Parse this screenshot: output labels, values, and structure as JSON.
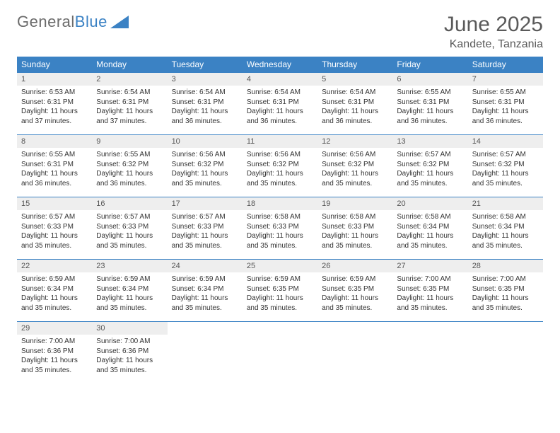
{
  "logo": {
    "text1": "General",
    "text2": "Blue"
  },
  "title": "June 2025",
  "location": "Kandete, Tanzania",
  "colors": {
    "header_bg": "#3b82c4",
    "header_text": "#ffffff",
    "daynum_bg": "#eeeeee",
    "text": "#333333",
    "logo_gray": "#6b6b6b",
    "logo_blue": "#3b82c4"
  },
  "day_headers": [
    "Sunday",
    "Monday",
    "Tuesday",
    "Wednesday",
    "Thursday",
    "Friday",
    "Saturday"
  ],
  "weeks": [
    [
      {
        "n": "1",
        "sr": "6:53 AM",
        "ss": "6:31 PM",
        "dl": "11 hours and 37 minutes."
      },
      {
        "n": "2",
        "sr": "6:54 AM",
        "ss": "6:31 PM",
        "dl": "11 hours and 37 minutes."
      },
      {
        "n": "3",
        "sr": "6:54 AM",
        "ss": "6:31 PM",
        "dl": "11 hours and 36 minutes."
      },
      {
        "n": "4",
        "sr": "6:54 AM",
        "ss": "6:31 PM",
        "dl": "11 hours and 36 minutes."
      },
      {
        "n": "5",
        "sr": "6:54 AM",
        "ss": "6:31 PM",
        "dl": "11 hours and 36 minutes."
      },
      {
        "n": "6",
        "sr": "6:55 AM",
        "ss": "6:31 PM",
        "dl": "11 hours and 36 minutes."
      },
      {
        "n": "7",
        "sr": "6:55 AM",
        "ss": "6:31 PM",
        "dl": "11 hours and 36 minutes."
      }
    ],
    [
      {
        "n": "8",
        "sr": "6:55 AM",
        "ss": "6:31 PM",
        "dl": "11 hours and 36 minutes."
      },
      {
        "n": "9",
        "sr": "6:55 AM",
        "ss": "6:32 PM",
        "dl": "11 hours and 36 minutes."
      },
      {
        "n": "10",
        "sr": "6:56 AM",
        "ss": "6:32 PM",
        "dl": "11 hours and 35 minutes."
      },
      {
        "n": "11",
        "sr": "6:56 AM",
        "ss": "6:32 PM",
        "dl": "11 hours and 35 minutes."
      },
      {
        "n": "12",
        "sr": "6:56 AM",
        "ss": "6:32 PM",
        "dl": "11 hours and 35 minutes."
      },
      {
        "n": "13",
        "sr": "6:57 AM",
        "ss": "6:32 PM",
        "dl": "11 hours and 35 minutes."
      },
      {
        "n": "14",
        "sr": "6:57 AM",
        "ss": "6:32 PM",
        "dl": "11 hours and 35 minutes."
      }
    ],
    [
      {
        "n": "15",
        "sr": "6:57 AM",
        "ss": "6:33 PM",
        "dl": "11 hours and 35 minutes."
      },
      {
        "n": "16",
        "sr": "6:57 AM",
        "ss": "6:33 PM",
        "dl": "11 hours and 35 minutes."
      },
      {
        "n": "17",
        "sr": "6:57 AM",
        "ss": "6:33 PM",
        "dl": "11 hours and 35 minutes."
      },
      {
        "n": "18",
        "sr": "6:58 AM",
        "ss": "6:33 PM",
        "dl": "11 hours and 35 minutes."
      },
      {
        "n": "19",
        "sr": "6:58 AM",
        "ss": "6:33 PM",
        "dl": "11 hours and 35 minutes."
      },
      {
        "n": "20",
        "sr": "6:58 AM",
        "ss": "6:34 PM",
        "dl": "11 hours and 35 minutes."
      },
      {
        "n": "21",
        "sr": "6:58 AM",
        "ss": "6:34 PM",
        "dl": "11 hours and 35 minutes."
      }
    ],
    [
      {
        "n": "22",
        "sr": "6:59 AM",
        "ss": "6:34 PM",
        "dl": "11 hours and 35 minutes."
      },
      {
        "n": "23",
        "sr": "6:59 AM",
        "ss": "6:34 PM",
        "dl": "11 hours and 35 minutes."
      },
      {
        "n": "24",
        "sr": "6:59 AM",
        "ss": "6:34 PM",
        "dl": "11 hours and 35 minutes."
      },
      {
        "n": "25",
        "sr": "6:59 AM",
        "ss": "6:35 PM",
        "dl": "11 hours and 35 minutes."
      },
      {
        "n": "26",
        "sr": "6:59 AM",
        "ss": "6:35 PM",
        "dl": "11 hours and 35 minutes."
      },
      {
        "n": "27",
        "sr": "7:00 AM",
        "ss": "6:35 PM",
        "dl": "11 hours and 35 minutes."
      },
      {
        "n": "28",
        "sr": "7:00 AM",
        "ss": "6:35 PM",
        "dl": "11 hours and 35 minutes."
      }
    ],
    [
      {
        "n": "29",
        "sr": "7:00 AM",
        "ss": "6:36 PM",
        "dl": "11 hours and 35 minutes."
      },
      {
        "n": "30",
        "sr": "7:00 AM",
        "ss": "6:36 PM",
        "dl": "11 hours and 35 minutes."
      },
      null,
      null,
      null,
      null,
      null
    ]
  ],
  "labels": {
    "sunrise": "Sunrise:",
    "sunset": "Sunset:",
    "daylight": "Daylight:"
  }
}
